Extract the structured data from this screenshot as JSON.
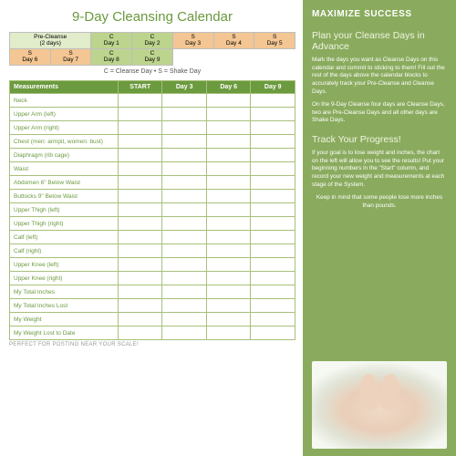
{
  "title": "9-Day Cleansing Calendar",
  "calendar": {
    "colors": {
      "pre": "#e1ecca",
      "c": "#bcd48d",
      "s": "#f3c693",
      "border": "#bfbfbf"
    },
    "row1": [
      {
        "type": "pre",
        "top": "Pre-Cleanse",
        "bottom": "(2 days)",
        "colspan": 2
      },
      {
        "type": "c",
        "top": "C",
        "bottom": "Day 1"
      },
      {
        "type": "c",
        "top": "C",
        "bottom": "Day 2"
      },
      {
        "type": "s",
        "top": "S",
        "bottom": "Day 3"
      },
      {
        "type": "s",
        "top": "S",
        "bottom": "Day 4"
      },
      {
        "type": "s",
        "top": "S",
        "bottom": "Day 5"
      }
    ],
    "row2": [
      {
        "type": "s",
        "top": "S",
        "bottom": "Day 6"
      },
      {
        "type": "s",
        "top": "S",
        "bottom": "Day 7"
      },
      {
        "type": "c",
        "top": "C",
        "bottom": "Day 8"
      },
      {
        "type": "c",
        "top": "C",
        "bottom": "Day 9"
      }
    ],
    "legend": "C = Cleanse Day • S = Shake Day"
  },
  "measurements": {
    "headers": [
      "Measurements",
      "START",
      "Day 3",
      "Day 6",
      "Day 9"
    ],
    "header_bg": "#6b9a3f",
    "border_color": "#a7c07a",
    "rows": [
      "Neck",
      "Upper Arm (left)",
      "Upper Arm (right)",
      "Chest (men: armpit, women: bust)",
      "Diaphragm (rib cage)",
      "Waist",
      "Abdomen 6\" Below Waist",
      "Buttocks 9\" Below Waist",
      "Upper Thigh (left)",
      "Upper Thigh (right)",
      "Calf (left)",
      "Calf (right)",
      "Upper Knee (left)",
      "Upper Knee (right)",
      "My Total Inches",
      "My Total Inches Lost",
      "My Weight",
      "My Weight Lost to Date"
    ]
  },
  "footer_note": "PERFECT FOR POSTING NEAR YOUR SCALE!",
  "sidebar": {
    "bg": "#8aab5e",
    "heading": "MAXIMIZE SUCCESS",
    "section1": {
      "title": "Plan your Cleanse Days in Advance",
      "p1": "Mark the days you want as Cleanse Days on this calendar and commit to sticking to them! Fill out the rest of the days above the calendar blocks to accurately track your Pre-Cleanse and Cleanse Days.",
      "p2": "On the 9-Day Cleanse four days are Cleanse Days, two are Pre-Cleanse Days and all other days are Shake Days."
    },
    "section2": {
      "title": "Track Your Progress!",
      "p1": "If your goal is to lose weight and inches, the chart on the left will allow you to see the results! Put your beginning numbers in the \"Start\" column, and record your new weight and measurements at each stage of the System.",
      "p2": "Keep in mind that some people lose more inches than pounds."
    }
  }
}
